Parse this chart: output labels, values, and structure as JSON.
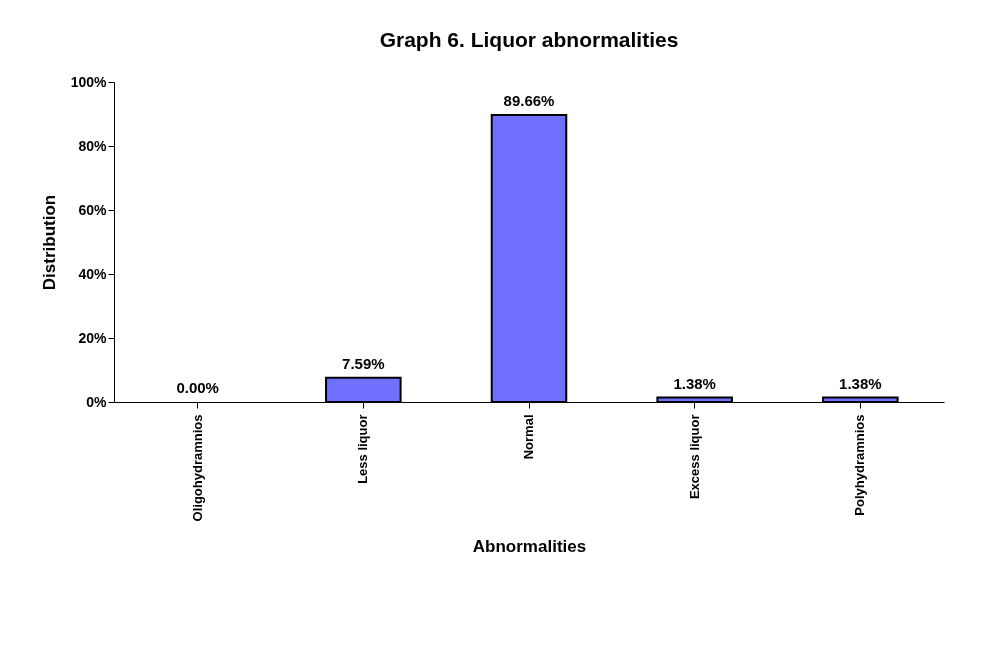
{
  "chart_data": {
    "type": "bar",
    "title": "Graph 6. Liquor abnormalities",
    "xlabel": "Abnormalities",
    "ylabel": "Distribution",
    "categories": [
      "Oligohydramnios",
      "Less liquor",
      "Normal",
      "Excess liquor",
      "Polyhydramnios"
    ],
    "values": [
      0,
      7.59,
      89.66,
      1.38,
      1.38
    ],
    "value_labels": [
      "0.00%",
      "7.59%",
      "89.66%",
      "1.38%",
      "1.38%"
    ],
    "color": "#7070ff",
    "ylim": [
      0,
      100
    ],
    "yticks": [
      {
        "value": 0,
        "label": "0%"
      },
      {
        "value": 20,
        "label": "20%"
      },
      {
        "value": 40,
        "label": "40%"
      },
      {
        "value": 60,
        "label": "60%"
      },
      {
        "value": 80,
        "label": "80%"
      },
      {
        "value": 100,
        "label": "100%"
      }
    ],
    "grid": false
  }
}
